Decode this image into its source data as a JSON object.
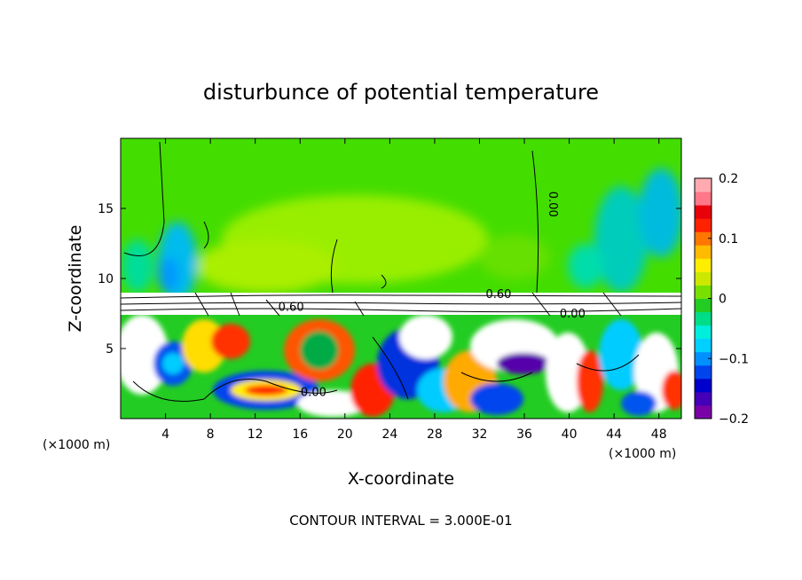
{
  "chart_data": {
    "type": "heatmap",
    "title": "disturbunce of potential temperature",
    "xlabel": "X-coordinate",
    "ylabel": "Z-coordinate",
    "x_unit": "(×1000 m)",
    "x_unit_right": "(×1000 m)",
    "xlim": [
      0,
      50
    ],
    "ylim": [
      0,
      20
    ],
    "x_ticks": [
      4,
      8,
      12,
      16,
      20,
      24,
      28,
      32,
      36,
      40,
      44,
      48
    ],
    "y_ticks": [
      5,
      10,
      15
    ],
    "colorbar": {
      "min": -0.2,
      "max": 0.2,
      "ticks": [
        0.2,
        0.1,
        0,
        -0.1,
        -0.2
      ],
      "tick_labels": [
        "0.2",
        "0.1",
        "0",
        "−0.1",
        "−0.2"
      ],
      "colors": [
        "#7a00a8",
        "#4400b8",
        "#0000cc",
        "#0044ee",
        "#0090ff",
        "#00d0ff",
        "#00eedd",
        "#00dd88",
        "#22cc22",
        "#77e000",
        "#cce800",
        "#ffee00",
        "#ffbb00",
        "#ff7700",
        "#ff2200",
        "#e8000b",
        "#ff7788",
        "#ffaab0"
      ]
    },
    "contour_labels": [
      {
        "text": "0.00",
        "x": 38.2,
        "z": 15.3,
        "rotate": 90
      },
      {
        "text": "0.60",
        "x": 33.7,
        "z": 8.6
      },
      {
        "text": "0.60",
        "x": 15.2,
        "z": 7.7
      },
      {
        "text": "0.00",
        "x": 40.3,
        "z": 7.2
      },
      {
        "text": "0.00",
        "x": 17.2,
        "z": 1.6
      }
    ],
    "footer": "CONTOUR INTERVAL = 3.000E-01"
  }
}
